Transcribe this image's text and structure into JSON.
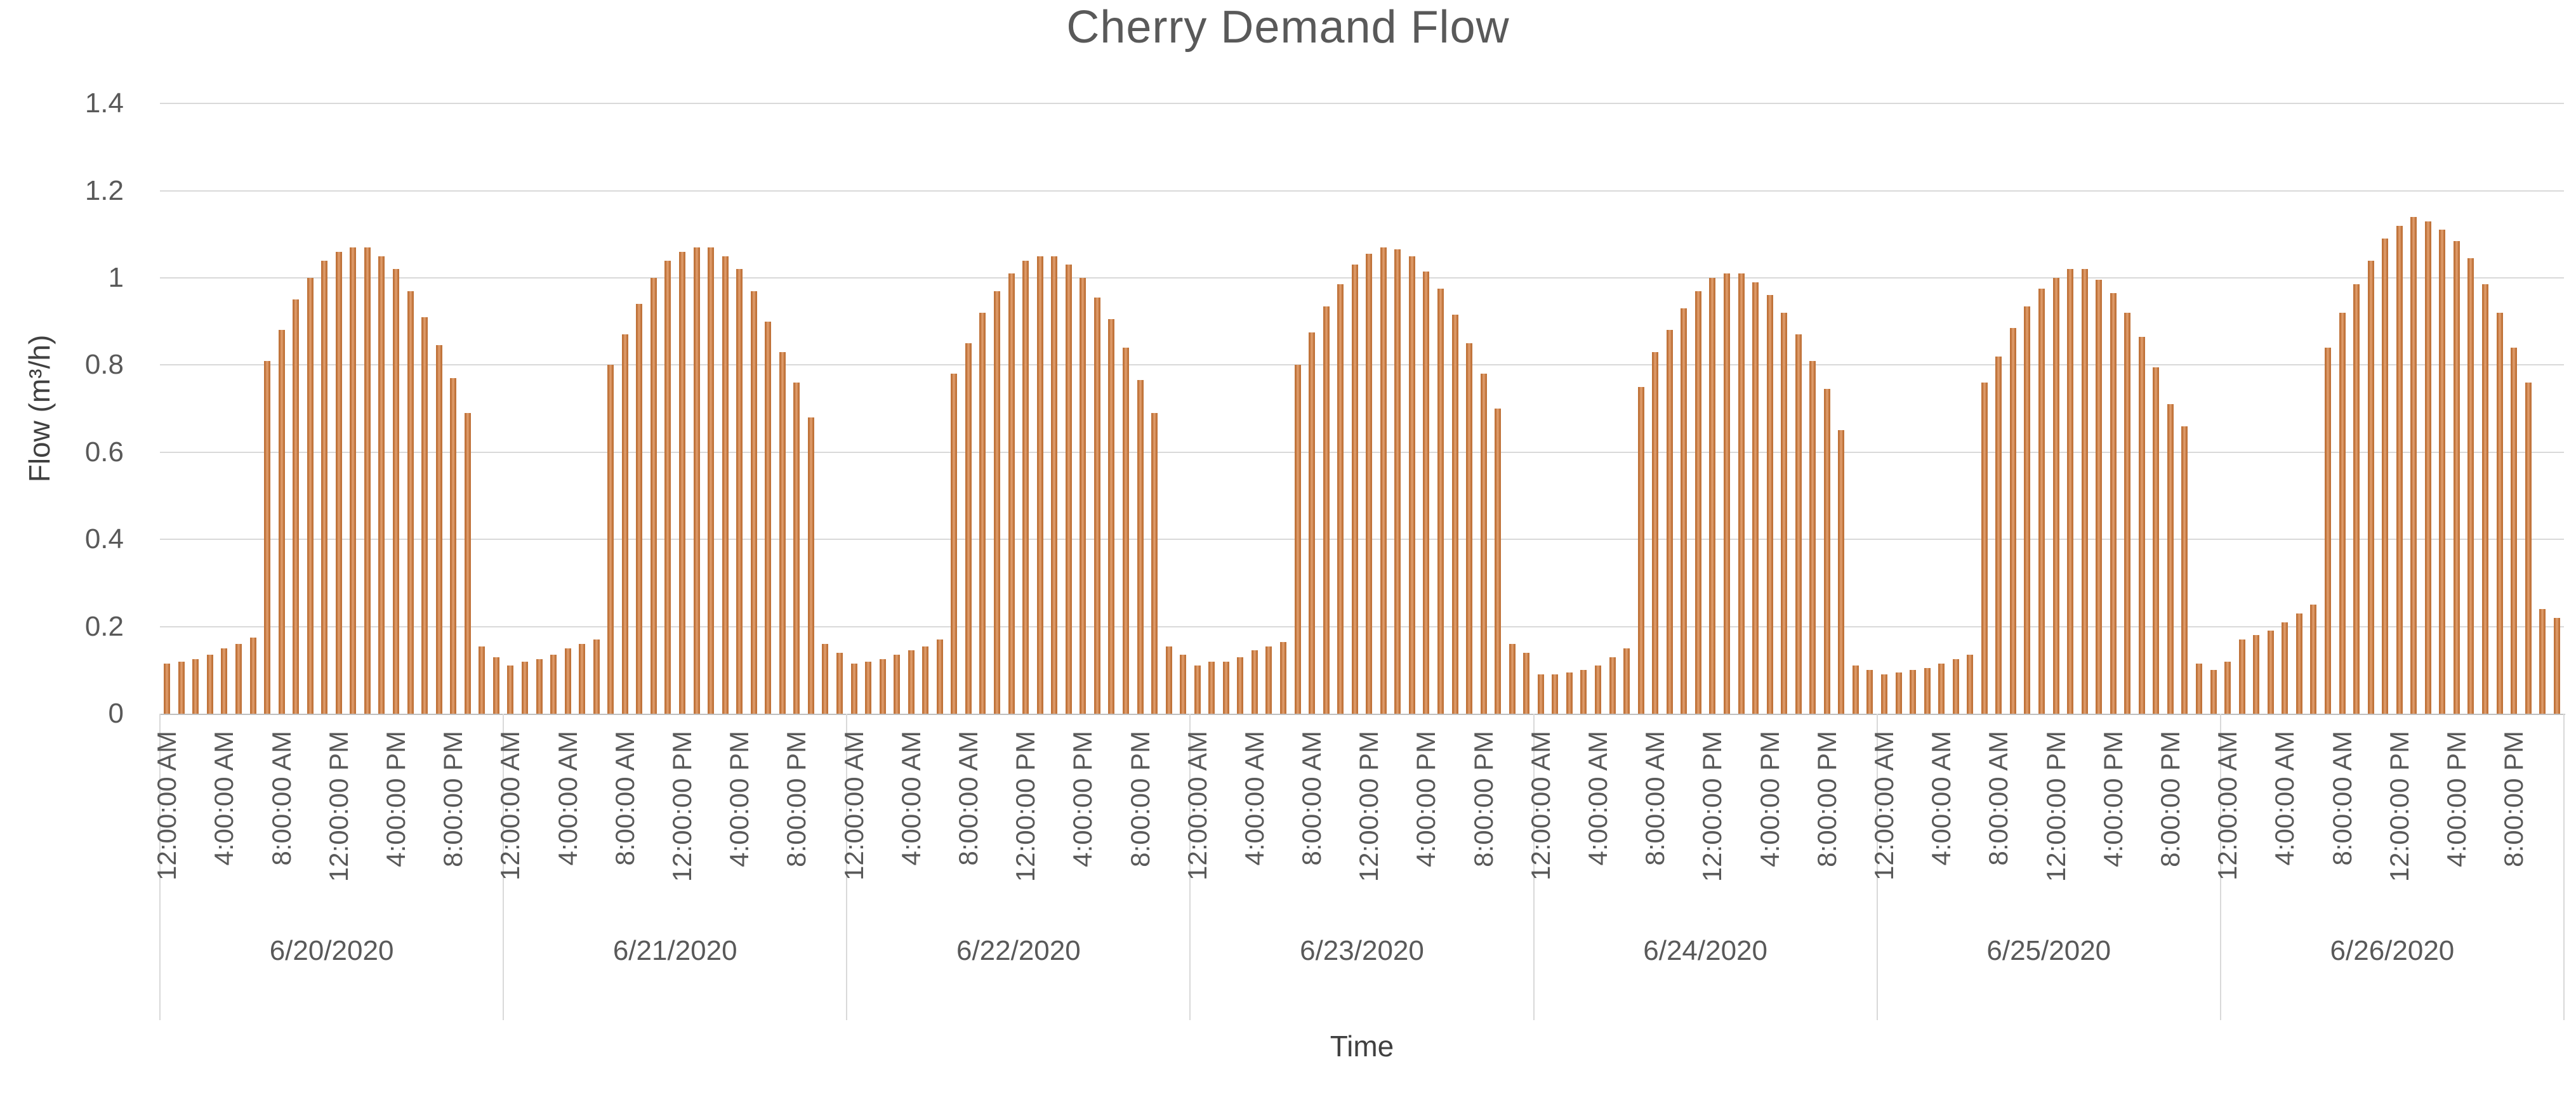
{
  "chart_data": {
    "type": "bar",
    "title": "Cherry Demand Flow",
    "xlabel": "Time",
    "ylabel": "Flow (m³/h)",
    "ylim": [
      0,
      1.4
    ],
    "ytick_labels": [
      "0",
      "0.2",
      "0.4",
      "0.6",
      "0.8",
      "1",
      "1.2",
      "1.4"
    ],
    "ytick_values": [
      0,
      0.2,
      0.4,
      0.6,
      0.8,
      1.0,
      1.2,
      1.4
    ],
    "grid": true,
    "legend": false,
    "bar_color": "#c9793a",
    "axis_text_color": "#595959",
    "time_ticks_per_day": [
      "12:00:00 AM",
      "4:00:00 AM",
      "8:00:00 AM",
      "12:00:00 PM",
      "4:00:00 PM",
      "8:00:00 PM"
    ],
    "hours_per_day": 24,
    "days": [
      {
        "date": "6/20/2020",
        "values": [
          0.115,
          0.12,
          0.125,
          0.135,
          0.15,
          0.16,
          0.175,
          0.81,
          0.88,
          0.95,
          1.0,
          1.04,
          1.06,
          1.07,
          1.07,
          1.05,
          1.02,
          0.97,
          0.91,
          0.845,
          0.77,
          0.69,
          0.155,
          0.13
        ]
      },
      {
        "date": "6/21/2020",
        "values": [
          0.11,
          0.12,
          0.125,
          0.135,
          0.15,
          0.16,
          0.17,
          0.8,
          0.87,
          0.94,
          1.0,
          1.04,
          1.06,
          1.07,
          1.07,
          1.05,
          1.02,
          0.97,
          0.9,
          0.83,
          0.76,
          0.68,
          0.16,
          0.14
        ]
      },
      {
        "date": "6/22/2020",
        "values": [
          0.115,
          0.12,
          0.125,
          0.135,
          0.145,
          0.155,
          0.17,
          0.78,
          0.85,
          0.92,
          0.97,
          1.01,
          1.04,
          1.05,
          1.05,
          1.03,
          1.0,
          0.955,
          0.905,
          0.84,
          0.765,
          0.69,
          0.155,
          0.135
        ]
      },
      {
        "date": "6/23/2020",
        "values": [
          0.11,
          0.12,
          0.12,
          0.13,
          0.145,
          0.155,
          0.165,
          0.8,
          0.875,
          0.935,
          0.985,
          1.03,
          1.055,
          1.07,
          1.065,
          1.05,
          1.015,
          0.975,
          0.915,
          0.85,
          0.78,
          0.7,
          0.16,
          0.14
        ]
      },
      {
        "date": "6/24/2020",
        "values": [
          0.09,
          0.09,
          0.095,
          0.1,
          0.11,
          0.13,
          0.15,
          0.75,
          0.83,
          0.88,
          0.93,
          0.97,
          1.0,
          1.01,
          1.01,
          0.99,
          0.96,
          0.92,
          0.87,
          0.81,
          0.745,
          0.65,
          0.11,
          0.1
        ]
      },
      {
        "date": "6/25/2020",
        "values": [
          0.09,
          0.095,
          0.1,
          0.105,
          0.115,
          0.125,
          0.135,
          0.76,
          0.82,
          0.885,
          0.935,
          0.975,
          1.0,
          1.02,
          1.02,
          0.995,
          0.965,
          0.92,
          0.865,
          0.795,
          0.71,
          0.66,
          0.115,
          0.1
        ]
      },
      {
        "date": "6/26/2020",
        "values": [
          0.12,
          0.17,
          0.18,
          0.19,
          0.21,
          0.23,
          0.25,
          0.84,
          0.92,
          0.985,
          1.04,
          1.09,
          1.12,
          1.14,
          1.13,
          1.11,
          1.085,
          1.045,
          0.985,
          0.92,
          0.84,
          0.76,
          0.24,
          0.22
        ]
      }
    ]
  }
}
